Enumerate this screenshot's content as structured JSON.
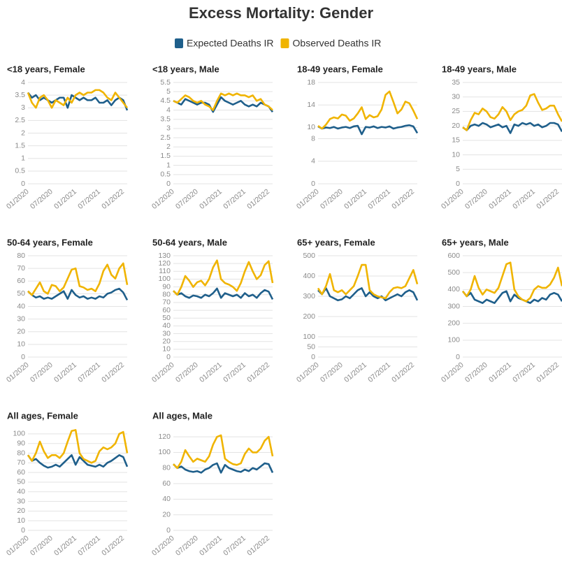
{
  "title": "Excess Mortality: Gender",
  "chart_data": [
    {
      "type": "line",
      "title": "<18 years, Female",
      "categories": [
        "01/2020",
        null,
        null,
        null,
        null,
        null,
        "07/2020",
        null,
        null,
        null,
        null,
        null,
        "01/2021",
        null,
        null,
        null,
        null,
        null,
        "07/2021",
        null,
        null,
        null,
        null,
        null,
        "01/2022",
        null
      ],
      "ylim": [
        0,
        4
      ],
      "yticks": [
        0,
        0.5,
        1,
        1.5,
        2,
        2.5,
        3,
        3.5,
        4
      ],
      "grid": true,
      "series": [
        {
          "name": "Expected Deaths IR",
          "color": "#1f5f8b",
          "values": [
            3.6,
            3.4,
            3.5,
            3.3,
            3.4,
            3.3,
            3.2,
            3.3,
            3.4,
            3.4,
            3.0,
            3.5,
            3.4,
            3.3,
            3.4,
            3.3,
            3.3,
            3.4,
            3.2,
            3.2,
            3.3,
            3.1,
            3.3,
            3.4,
            3.3,
            2.9
          ]
        },
        {
          "name": "Observed Deaths IR",
          "color": "#f0b400",
          "values": [
            3.6,
            3.2,
            3.0,
            3.4,
            3.5,
            3.3,
            3.0,
            3.3,
            3.2,
            3.1,
            3.4,
            3.2,
            3.5,
            3.6,
            3.5,
            3.6,
            3.6,
            3.7,
            3.7,
            3.6,
            3.4,
            3.3,
            3.6,
            3.4,
            3.2,
            3.0
          ]
        }
      ]
    },
    {
      "type": "line",
      "title": "<18 years, Male",
      "categories": [
        "01/2020",
        null,
        null,
        null,
        null,
        null,
        "07/2020",
        null,
        null,
        null,
        null,
        null,
        "01/2021",
        null,
        null,
        null,
        null,
        null,
        "07/2021",
        null,
        null,
        null,
        null,
        null,
        "01/2022",
        null
      ],
      "ylim": [
        0,
        5.5
      ],
      "yticks": [
        0,
        0.5,
        1,
        1.5,
        2,
        2.5,
        3,
        3.5,
        4,
        4.5,
        5,
        5.5
      ],
      "grid": true,
      "series": [
        {
          "name": "Expected Deaths IR",
          "color": "#1f5f8b",
          "values": [
            4.5,
            4.4,
            4.3,
            4.6,
            4.5,
            4.4,
            4.3,
            4.4,
            4.4,
            4.3,
            3.9,
            4.3,
            4.7,
            4.5,
            4.4,
            4.3,
            4.4,
            4.5,
            4.3,
            4.2,
            4.3,
            4.2,
            4.4,
            4.3,
            4.2,
            3.9
          ]
        },
        {
          "name": "Observed Deaths IR",
          "color": "#f0b400",
          "values": [
            4.5,
            4.4,
            4.6,
            4.8,
            4.7,
            4.5,
            4.4,
            4.5,
            4.3,
            4.2,
            4.0,
            4.5,
            4.9,
            4.8,
            4.9,
            4.8,
            4.9,
            4.8,
            4.8,
            4.7,
            4.8,
            4.5,
            4.6,
            4.3,
            4.2,
            4.0
          ]
        }
      ]
    },
    {
      "type": "line",
      "title": "18-49 years, Female",
      "categories": [
        "01/2020",
        null,
        null,
        null,
        null,
        null,
        "07/2020",
        null,
        null,
        null,
        null,
        null,
        "01/2021",
        null,
        null,
        null,
        null,
        null,
        "07/2021",
        null,
        null,
        null,
        null,
        null,
        "01/2022",
        null
      ],
      "ylim": [
        0,
        18
      ],
      "yticks": [
        0,
        4,
        8,
        10,
        14,
        18
      ],
      "grid": true,
      "series": [
        {
          "name": "Expected Deaths IR",
          "color": "#1f5f8b",
          "values": [
            10.2,
            9.8,
            10.0,
            9.9,
            10.1,
            9.8,
            10.0,
            10.1,
            9.9,
            10.2,
            10.3,
            8.8,
            10.1,
            10.0,
            10.2,
            9.9,
            10.1,
            10.0,
            10.2,
            9.8,
            10.0,
            10.1,
            10.3,
            10.4,
            10.2,
            9.0
          ]
        },
        {
          "name": "Observed Deaths IR",
          "color": "#f0b400",
          "values": [
            10.3,
            9.8,
            10.5,
            11.5,
            11.8,
            11.6,
            12.3,
            12.1,
            11.2,
            11.6,
            12.5,
            13.6,
            11.5,
            12.2,
            11.8,
            12.0,
            13.2,
            15.8,
            16.4,
            14.5,
            12.5,
            13.2,
            14.6,
            14.3,
            13.0,
            11.5
          ]
        }
      ]
    },
    {
      "type": "line",
      "title": "18-49 years, Male",
      "categories": [
        "01/2020",
        null,
        null,
        null,
        null,
        null,
        "07/2020",
        null,
        null,
        null,
        null,
        null,
        "01/2021",
        null,
        null,
        null,
        null,
        null,
        "07/2021",
        null,
        null,
        null,
        null,
        null,
        "01/2022",
        null
      ],
      "ylim": [
        0,
        35
      ],
      "yticks": [
        0,
        5,
        10,
        15,
        20,
        25,
        30,
        35
      ],
      "grid": true,
      "series": [
        {
          "name": "Expected Deaths IR",
          "color": "#1f5f8b",
          "values": [
            19.5,
            18.5,
            20,
            20.5,
            20,
            21,
            20.5,
            19.5,
            20,
            20.5,
            19.5,
            20,
            17.5,
            20.5,
            20,
            21,
            20.5,
            21,
            20,
            20.5,
            19.5,
            20,
            21,
            21,
            20.5,
            18
          ]
        },
        {
          "name": "Observed Deaths IR",
          "color": "#f0b400",
          "values": [
            19.5,
            18.5,
            22,
            24.5,
            24,
            26,
            25,
            23,
            22.5,
            24,
            26.5,
            25,
            22,
            24,
            25,
            25.5,
            27,
            30.5,
            31,
            28,
            25.5,
            26,
            27,
            27,
            24,
            21.5
          ]
        }
      ]
    },
    {
      "type": "line",
      "title": "50-64 years, Female",
      "categories": [
        "01/2020",
        null,
        null,
        null,
        null,
        null,
        "07/2020",
        null,
        null,
        null,
        null,
        null,
        "01/2021",
        null,
        null,
        null,
        null,
        null,
        "07/2021",
        null,
        null,
        null,
        null,
        null,
        "01/2022",
        null
      ],
      "ylim": [
        0,
        80
      ],
      "yticks": [
        0,
        10,
        20,
        30,
        40,
        50,
        60,
        70,
        80
      ],
      "grid": true,
      "series": [
        {
          "name": "Expected Deaths IR",
          "color": "#1f5f8b",
          "values": [
            52,
            49,
            47,
            48,
            46,
            47,
            46,
            48,
            50,
            52,
            46,
            53,
            49,
            47,
            48,
            46,
            47,
            46,
            48,
            47,
            50,
            51,
            53,
            54,
            51,
            45
          ]
        },
        {
          "name": "Observed Deaths IR",
          "color": "#f0b400",
          "values": [
            52,
            49,
            54,
            59,
            52,
            50,
            57,
            56,
            52,
            55,
            62,
            69,
            70,
            56,
            55,
            53,
            54,
            52,
            58,
            68,
            73,
            65,
            62,
            70,
            74,
            57
          ]
        }
      ]
    },
    {
      "type": "line",
      "title": "50-64 years, Male",
      "categories": [
        "01/2020",
        null,
        null,
        null,
        null,
        null,
        "07/2020",
        null,
        null,
        null,
        null,
        null,
        "01/2021",
        null,
        null,
        null,
        null,
        null,
        "07/2021",
        null,
        null,
        null,
        null,
        null,
        "01/2022",
        null
      ],
      "ylim": [
        0,
        130
      ],
      "yticks": [
        0,
        10,
        20,
        30,
        40,
        50,
        60,
        70,
        80,
        90,
        100,
        110,
        120,
        130
      ],
      "grid": true,
      "series": [
        {
          "name": "Expected Deaths IR",
          "color": "#1f5f8b",
          "values": [
            85,
            80,
            82,
            78,
            76,
            79,
            78,
            76,
            80,
            78,
            82,
            88,
            76,
            82,
            80,
            78,
            80,
            76,
            82,
            78,
            80,
            76,
            82,
            86,
            84,
            74
          ]
        },
        {
          "name": "Observed Deaths IR",
          "color": "#f0b400",
          "values": [
            85,
            80,
            90,
            104,
            98,
            90,
            96,
            98,
            92,
            100,
            115,
            124,
            100,
            95,
            93,
            90,
            85,
            95,
            110,
            122,
            110,
            100,
            105,
            118,
            123,
            95
          ]
        }
      ]
    },
    {
      "type": "line",
      "title": "65+ years, Female",
      "categories": [
        "01/2020",
        null,
        null,
        null,
        null,
        null,
        "07/2020",
        null,
        null,
        null,
        null,
        null,
        "01/2021",
        null,
        null,
        null,
        null,
        null,
        "07/2021",
        null,
        null,
        null,
        null,
        null,
        "01/2022",
        null
      ],
      "ylim": [
        0,
        500
      ],
      "yticks": [
        0,
        50,
        100,
        200,
        300,
        400,
        500
      ],
      "grid": true,
      "series": [
        {
          "name": "Expected Deaths IR",
          "color": "#1f5f8b",
          "values": [
            330,
            310,
            340,
            300,
            290,
            280,
            285,
            300,
            290,
            310,
            330,
            340,
            300,
            320,
            300,
            290,
            300,
            280,
            290,
            300,
            310,
            300,
            320,
            330,
            320,
            280
          ]
        },
        {
          "name": "Observed Deaths IR",
          "color": "#f0b400",
          "values": [
            340,
            310,
            350,
            410,
            330,
            320,
            330,
            310,
            330,
            350,
            400,
            455,
            455,
            330,
            310,
            300,
            295,
            290,
            320,
            340,
            345,
            340,
            350,
            390,
            430,
            360
          ]
        }
      ]
    },
    {
      "type": "line",
      "title": "65+ years, Male",
      "categories": [
        "01/2020",
        null,
        null,
        null,
        null,
        null,
        "07/2020",
        null,
        null,
        null,
        null,
        null,
        "01/2021",
        null,
        null,
        null,
        null,
        null,
        "07/2021",
        null,
        null,
        null,
        null,
        null,
        "01/2022",
        null
      ],
      "ylim": [
        0,
        600
      ],
      "yticks": [
        0,
        100,
        200,
        300,
        400,
        500,
        600
      ],
      "grid": true,
      "series": [
        {
          "name": "Expected Deaths IR",
          "color": "#1f5f8b",
          "values": [
            390,
            360,
            380,
            340,
            330,
            320,
            340,
            330,
            320,
            350,
            380,
            390,
            330,
            370,
            350,
            340,
            330,
            320,
            340,
            330,
            350,
            340,
            370,
            380,
            370,
            330
          ]
        },
        {
          "name": "Observed Deaths IR",
          "color": "#f0b400",
          "values": [
            390,
            360,
            400,
            480,
            410,
            370,
            400,
            390,
            380,
            410,
            480,
            550,
            560,
            400,
            360,
            340,
            330,
            350,
            400,
            420,
            410,
            410,
            430,
            470,
            530,
            420
          ]
        }
      ]
    },
    {
      "type": "line",
      "title": "All ages, Female",
      "categories": [
        "01/2020",
        null,
        null,
        null,
        null,
        null,
        "07/2020",
        null,
        null,
        null,
        null,
        null,
        "01/2021",
        null,
        null,
        null,
        null,
        null,
        "07/2021",
        null,
        null,
        null,
        null,
        null,
        "01/2022",
        null
      ],
      "ylim": [
        0,
        105
      ],
      "yticks": [
        0,
        10,
        20,
        30,
        40,
        50,
        60,
        70,
        80,
        90,
        100
      ],
      "grid": true,
      "series": [
        {
          "name": "Expected Deaths IR",
          "color": "#1f5f8b",
          "values": [
            78,
            72,
            74,
            70,
            67,
            65,
            66,
            68,
            66,
            70,
            74,
            78,
            68,
            76,
            72,
            68,
            67,
            66,
            68,
            66,
            70,
            72,
            75,
            78,
            76,
            66
          ]
        },
        {
          "name": "Observed Deaths IR",
          "color": "#f0b400",
          "values": [
            78,
            72,
            80,
            92,
            82,
            75,
            78,
            78,
            75,
            80,
            92,
            103,
            104,
            80,
            74,
            72,
            70,
            72,
            82,
            86,
            84,
            86,
            90,
            100,
            102,
            80
          ]
        }
      ]
    },
    {
      "type": "line",
      "title": "All ages, Male",
      "categories": [
        "01/2020",
        null,
        null,
        null,
        null,
        null,
        "07/2020",
        null,
        null,
        null,
        null,
        null,
        "01/2021",
        null,
        null,
        null,
        null,
        null,
        "07/2021",
        null,
        null,
        null,
        null,
        null,
        "01/2022",
        null
      ],
      "ylim": [
        0,
        130
      ],
      "yticks": [
        0,
        20,
        40,
        60,
        80,
        100,
        120
      ],
      "grid": true,
      "series": [
        {
          "name": "Expected Deaths IR",
          "color": "#1f5f8b",
          "values": [
            85,
            80,
            82,
            78,
            76,
            75,
            76,
            74,
            78,
            80,
            84,
            86,
            74,
            84,
            80,
            78,
            76,
            75,
            78,
            76,
            80,
            78,
            82,
            86,
            85,
            74
          ]
        },
        {
          "name": "Observed Deaths IR",
          "color": "#f0b400",
          "values": [
            85,
            80,
            88,
            103,
            95,
            88,
            92,
            90,
            88,
            95,
            110,
            120,
            122,
            92,
            88,
            85,
            84,
            86,
            98,
            105,
            100,
            100,
            105,
            115,
            120,
            95
          ]
        }
      ]
    }
  ]
}
